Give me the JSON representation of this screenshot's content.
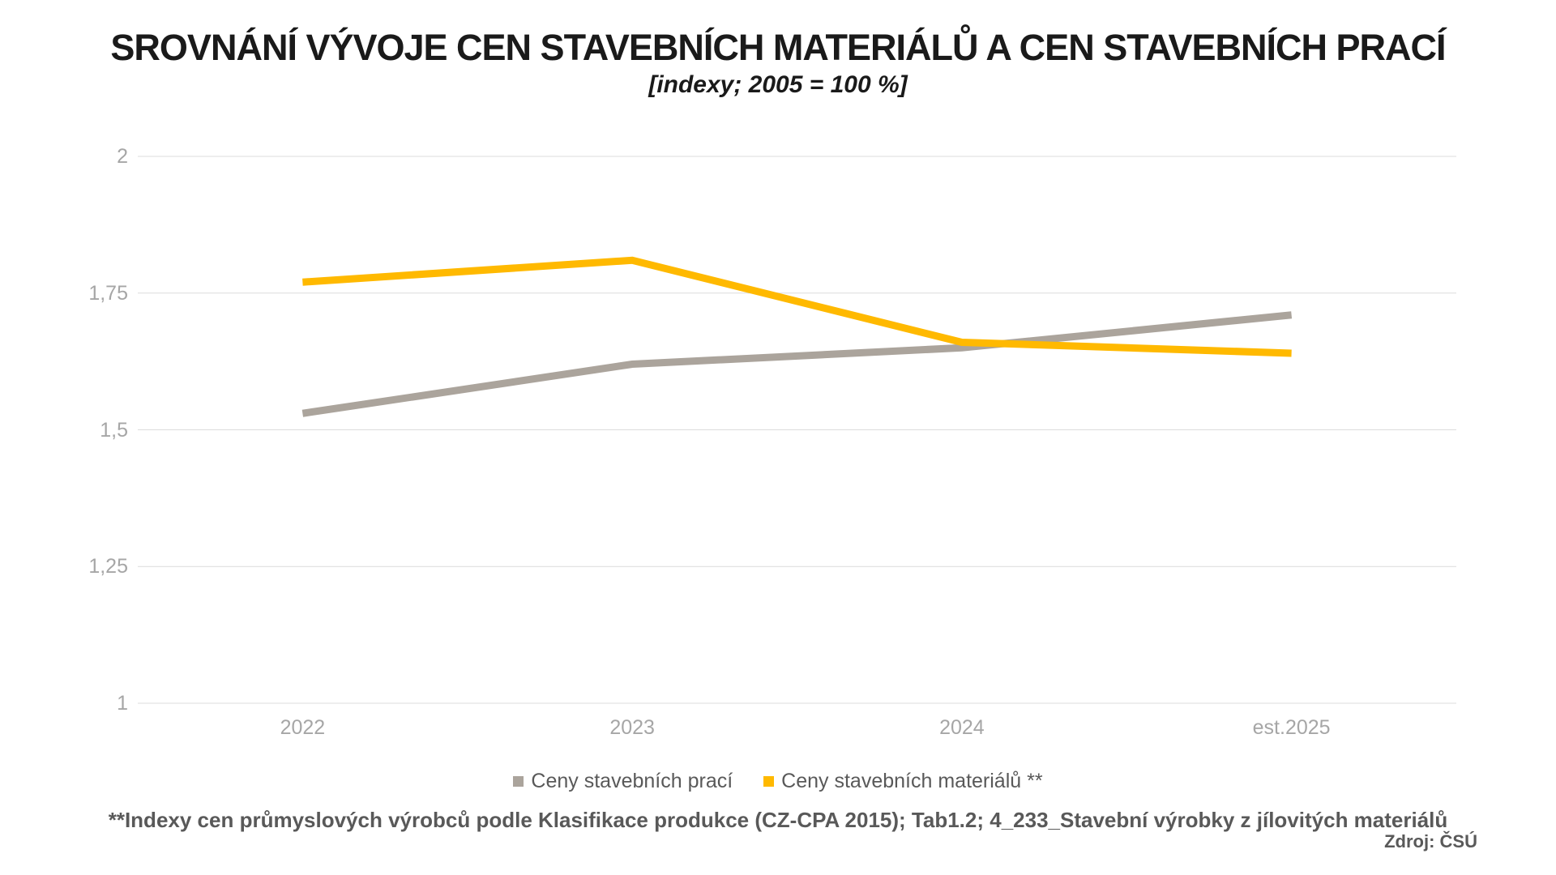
{
  "title": "SROVNÁNÍ VÝVOJE CEN STAVEBNÍCH MATERIÁLŮ A CEN STAVEBNÍCH PRACÍ",
  "subtitle": "[indexy; 2005 = 100 %]",
  "footnote": "**Indexy cen průmyslových výrobců podle Klasifikace produkce (CZ-CPA 2015); Tab1.2; 4_233_Stavební výrobky z jílovitých materiálů",
  "source": "Zdroj: ČSÚ",
  "colors": {
    "grid": "#dcdcdc",
    "axis_text": "#a6a6a6",
    "legend_text": "#595959",
    "title_text": "#1a1a1a",
    "series_work": "#aba49c",
    "series_materials": "#ffb900"
  },
  "chart_data": {
    "type": "line",
    "title": "SROVNÁNÍ VÝVOJE CEN STAVEBNÍCH MATERIÁLŮ A CEN STAVEBNÍCH PRACÍ",
    "subtitle": "[indexy; 2005 = 100 %]",
    "categories": [
      "2022",
      "2023",
      "2024",
      "est.2025"
    ],
    "series": [
      {
        "name": "Ceny stavebních prací",
        "color": "#aba49c",
        "values": [
          1.53,
          1.62,
          1.65,
          1.71
        ]
      },
      {
        "name": "Ceny stavebních materiálů **",
        "color": "#ffb900",
        "values": [
          1.77,
          1.81,
          1.66,
          1.64
        ]
      }
    ],
    "ylim": [
      1,
      2
    ],
    "y_ticks": [
      {
        "value": 2,
        "label": "2"
      },
      {
        "value": 1.75,
        "label": "1,75"
      },
      {
        "value": 1.5,
        "label": "1,5"
      },
      {
        "value": 1.25,
        "label": "1,25"
      },
      {
        "value": 1,
        "label": "1"
      }
    ],
    "xlabel": "",
    "ylabel": "",
    "grid": "horizontal",
    "legend_position": "bottom"
  }
}
